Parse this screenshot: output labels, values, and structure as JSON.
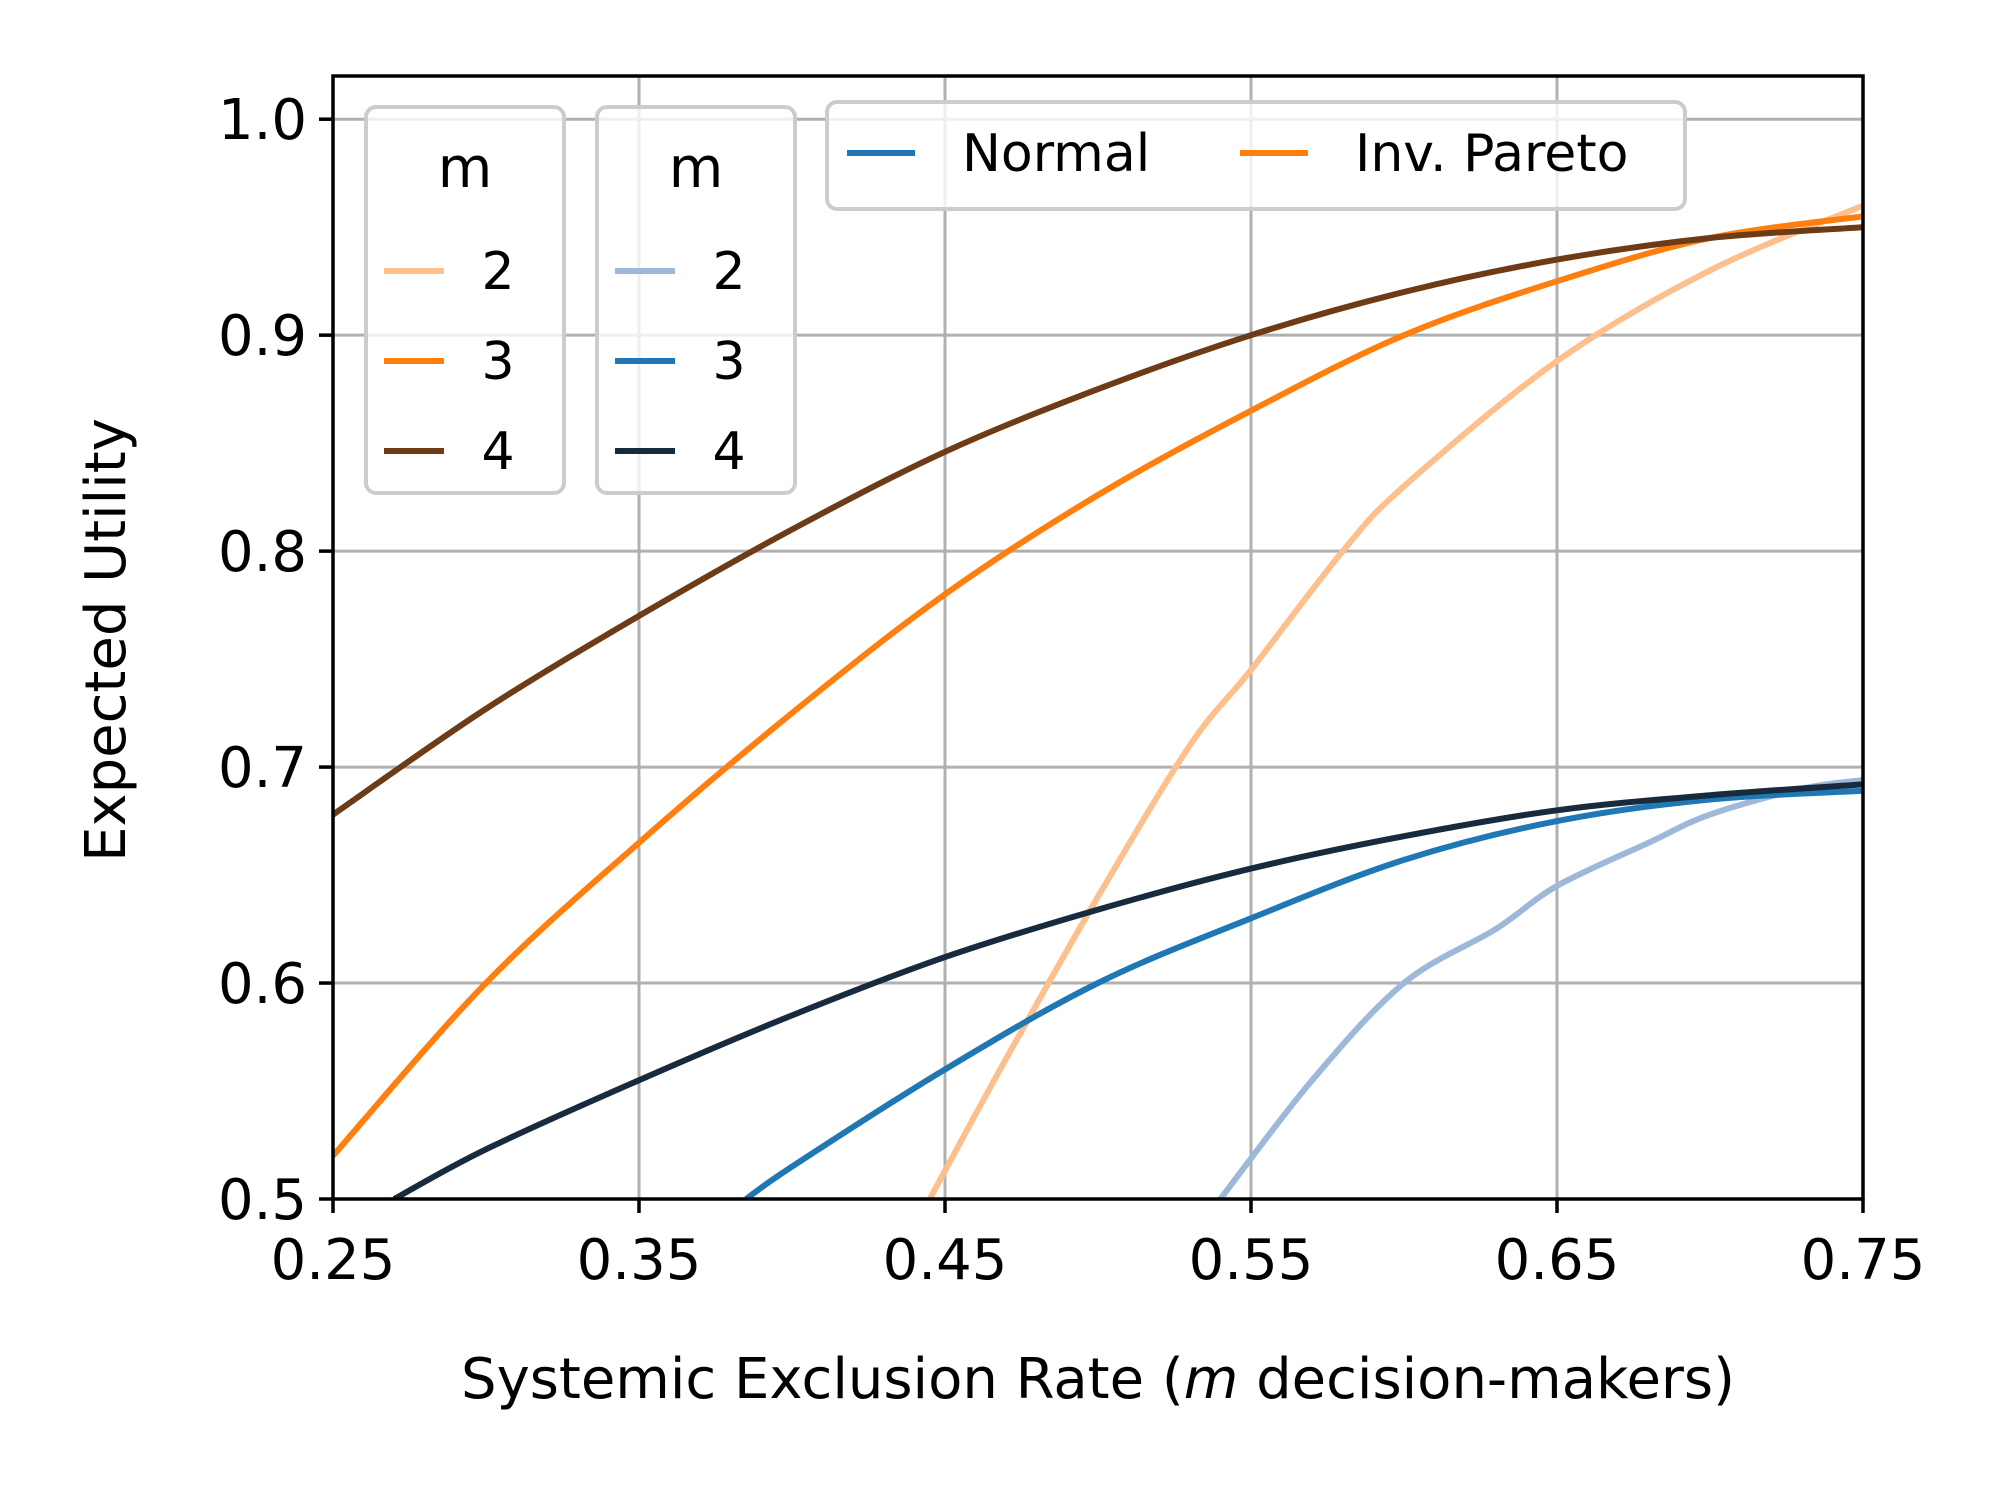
{
  "chart_data": {
    "type": "line",
    "xlabel_prefix": "Systemic Exclusion Rate (",
    "xlabel_italic": "m",
    "xlabel_suffix": " decision-makers)",
    "ylabel": "Expected Utility",
    "xlim": [
      0.25,
      0.75
    ],
    "ylim": [
      0.5,
      1.02
    ],
    "xticks": [
      0.25,
      0.35,
      0.45,
      0.55,
      0.65,
      0.75
    ],
    "xtick_labels": [
      "0.25",
      "0.35",
      "0.45",
      "0.55",
      "0.65",
      "0.75"
    ],
    "yticks": [
      0.5,
      0.6,
      0.7,
      0.8,
      0.9,
      1.0
    ],
    "ytick_labels": [
      "0.5",
      "0.6",
      "0.7",
      "0.8",
      "0.9",
      "1.0"
    ],
    "grid": true,
    "legends": [
      {
        "placement": "top-left",
        "title": "m",
        "entries": [
          {
            "label": "2",
            "color": "#fdc08d"
          },
          {
            "label": "3",
            "color": "#ff7f0e"
          },
          {
            "label": "4",
            "color": "#6e3b17"
          }
        ]
      },
      {
        "placement": "top-left (second)",
        "title": "m",
        "entries": [
          {
            "label": "2",
            "color": "#9db8d9"
          },
          {
            "label": "3",
            "color": "#1f77b4"
          },
          {
            "label": "4",
            "color": "#182a3d"
          }
        ]
      },
      {
        "placement": "top-center",
        "title": "",
        "entries": [
          {
            "label": "Normal",
            "color": "#1f77b4"
          },
          {
            "label": "Inv. Pareto",
            "color": "#ff7f0e"
          }
        ]
      }
    ],
    "series": [
      {
        "family": "Inv. Pareto",
        "m": "2",
        "color": "#fdc08d",
        "x": [
          0.445,
          0.47,
          0.5,
          0.53,
          0.55,
          0.58,
          0.6,
          0.65,
          0.7,
          0.75
        ],
        "y": [
          0.5,
          0.565,
          0.64,
          0.71,
          0.745,
          0.8,
          0.83,
          0.888,
          0.93,
          0.96
        ]
      },
      {
        "family": "Inv. Pareto",
        "m": "3",
        "color": "#ff7f0e",
        "x": [
          0.25,
          0.3,
          0.35,
          0.4,
          0.45,
          0.5,
          0.55,
          0.6,
          0.65,
          0.7,
          0.75
        ],
        "y": [
          0.52,
          0.6,
          0.665,
          0.725,
          0.78,
          0.826,
          0.865,
          0.9,
          0.925,
          0.945,
          0.955
        ]
      },
      {
        "family": "Inv. Pareto",
        "m": "4",
        "color": "#6e3b17",
        "x": [
          0.25,
          0.3,
          0.35,
          0.4,
          0.45,
          0.5,
          0.55,
          0.6,
          0.65,
          0.7,
          0.75
        ],
        "y": [
          0.678,
          0.727,
          0.77,
          0.81,
          0.846,
          0.875,
          0.9,
          0.92,
          0.935,
          0.945,
          0.95
        ]
      },
      {
        "family": "Normal",
        "m": "2",
        "color": "#9db8d9",
        "x": [
          0.54,
          0.57,
          0.6,
          0.63,
          0.65,
          0.68,
          0.7,
          0.73,
          0.75
        ],
        "y": [
          0.5,
          0.555,
          0.6,
          0.625,
          0.645,
          0.665,
          0.678,
          0.69,
          0.694
        ]
      },
      {
        "family": "Normal",
        "m": "3",
        "color": "#1f77b4",
        "x": [
          0.385,
          0.4,
          0.45,
          0.5,
          0.55,
          0.6,
          0.65,
          0.7,
          0.75
        ],
        "y": [
          0.5,
          0.515,
          0.56,
          0.6,
          0.63,
          0.657,
          0.675,
          0.685,
          0.689
        ]
      },
      {
        "family": "Normal",
        "m": "4",
        "color": "#182a3d",
        "x": [
          0.27,
          0.3,
          0.35,
          0.4,
          0.45,
          0.5,
          0.55,
          0.6,
          0.65,
          0.7,
          0.75
        ],
        "y": [
          0.5,
          0.523,
          0.555,
          0.585,
          0.612,
          0.634,
          0.653,
          0.668,
          0.68,
          0.687,
          0.692
        ]
      }
    ]
  }
}
